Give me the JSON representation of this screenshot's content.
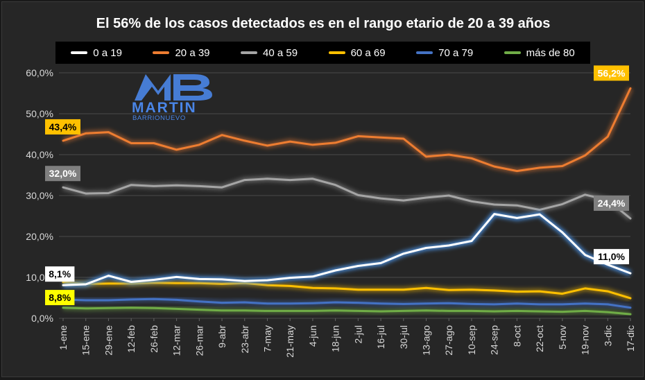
{
  "chart_data": {
    "type": "line",
    "title": "El 56% de los casos detectados es en el rango etario de 20 a 39 años",
    "xlabel": "",
    "ylabel": "",
    "ylim": [
      0,
      60
    ],
    "y_ticks": [
      "0,0%",
      "10,0%",
      "20,0%",
      "30,0%",
      "40,0%",
      "50,0%",
      "60,0%"
    ],
    "grid": true,
    "legend_position": "top",
    "x_ticks": [
      "1-ene",
      "15-ene",
      "29-ene",
      "12-feb",
      "26-feb",
      "12-mar",
      "26-mar",
      "9-abr",
      "23-abr",
      "7-may",
      "21-may",
      "4-jun",
      "18-jun",
      "2-jul",
      "16-jul",
      "30-jul",
      "13-ago",
      "27-ago",
      "10-sep",
      "24-sep",
      "8-oct",
      "22-oct",
      "5-nov",
      "19-nov",
      "3-dic",
      "17-dic"
    ],
    "series": [
      {
        "name": "0 a 19",
        "color": "#ffffff",
        "glow": "#4a90e2",
        "values": [
          8.1,
          8.3,
          10.4,
          8.9,
          9.4,
          10.1,
          9.6,
          9.5,
          9.1,
          9.3,
          9.9,
          10.2,
          11.7,
          12.8,
          13.5,
          15.8,
          17.2,
          17.8,
          18.9,
          25.5,
          24.5,
          25.4,
          21.0,
          15.5,
          13.1,
          11.0
        ]
      },
      {
        "name": "20 a 39",
        "color": "#ed7d31",
        "values": [
          43.4,
          45.2,
          45.5,
          42.8,
          42.8,
          41.2,
          42.4,
          44.8,
          43.4,
          42.2,
          43.2,
          42.4,
          42.9,
          44.5,
          44.2,
          43.9,
          39.5,
          40.0,
          39.1,
          37.1,
          36.0,
          36.8,
          37.2,
          39.8,
          44.4,
          56.2
        ]
      },
      {
        "name": "40 a 59",
        "color": "#a5a5a5",
        "values": [
          32.0,
          30.5,
          30.6,
          32.6,
          32.3,
          32.5,
          32.3,
          32.0,
          33.8,
          34.1,
          33.8,
          34.1,
          32.6,
          30.1,
          29.3,
          28.8,
          29.5,
          30.0,
          28.6,
          27.8,
          27.6,
          26.5,
          27.9,
          30.2,
          28.9,
          24.4
        ]
      },
      {
        "name": "60 a 69",
        "color": "#ffc000",
        "values": [
          8.8,
          8.4,
          8.5,
          8.5,
          8.7,
          8.6,
          8.6,
          8.4,
          8.6,
          8.1,
          7.9,
          7.4,
          7.3,
          7.0,
          7.0,
          7.0,
          7.4,
          6.9,
          7.0,
          6.8,
          6.5,
          6.6,
          6.0,
          7.3,
          6.6,
          4.9
        ]
      },
      {
        "name": "70 a 79",
        "color": "#4472c4",
        "values": [
          4.6,
          4.4,
          4.4,
          4.6,
          4.7,
          4.5,
          4.1,
          3.8,
          3.9,
          3.6,
          3.6,
          3.7,
          3.9,
          3.8,
          3.6,
          3.5,
          3.6,
          3.7,
          3.5,
          3.4,
          3.6,
          3.4,
          3.4,
          3.6,
          3.4,
          2.6
        ]
      },
      {
        "name": "más de 80",
        "color": "#70ad47",
        "values": [
          2.6,
          2.4,
          2.5,
          2.6,
          2.5,
          2.3,
          2.1,
          1.9,
          1.9,
          1.8,
          1.8,
          1.8,
          1.9,
          1.8,
          1.7,
          1.8,
          1.9,
          1.8,
          1.8,
          1.7,
          1.8,
          1.7,
          1.6,
          1.8,
          1.5,
          1.0
        ]
      }
    ],
    "annotations": [
      {
        "text": "43,4%",
        "series": "20 a 39",
        "end": "start",
        "box_color": "#ffc000",
        "text_color": "#000000"
      },
      {
        "text": "32,0%",
        "series": "40 a 59",
        "end": "start",
        "box_color": "#7f7f7f",
        "text_color": "#ffffff"
      },
      {
        "text": "8,1%",
        "series": "0 a 19",
        "end": "start",
        "box_color": "#ffffff",
        "text_color": "#000000"
      },
      {
        "text": "8,8%",
        "series": "60 a 69",
        "end": "start",
        "box_color": "#ffff00",
        "text_color": "#000000"
      },
      {
        "text": "56,2%",
        "series": "20 a 39",
        "end": "end",
        "box_color": "#ffc000",
        "text_color": "#ffffff"
      },
      {
        "text": "24,4%",
        "series": "40 a 59",
        "end": "end",
        "box_color": "#7f7f7f",
        "text_color": "#ffffff"
      },
      {
        "text": "11,0%",
        "series": "0 a 19",
        "end": "end",
        "box_color": "#ffffff",
        "text_color": "#000000"
      }
    ]
  },
  "logo": {
    "monogram": "MB",
    "name": "MARTIN",
    "surname": "BARRIONUEVO",
    "color": "#4a86e8"
  }
}
